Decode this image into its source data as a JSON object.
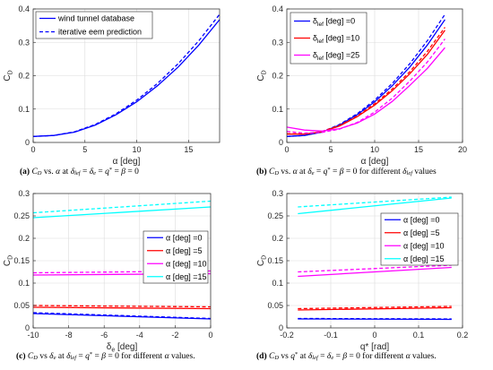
{
  "chart_data": [
    {
      "id": "a",
      "type": "line",
      "title": "",
      "xlabel": "α [deg]",
      "ylabel": "C_D",
      "xlim": [
        0,
        18
      ],
      "ylim": [
        0,
        0.4
      ],
      "xticks": [
        0,
        5,
        10,
        15
      ],
      "yticks": [
        0,
        0.1,
        0.2,
        0.3,
        0.4
      ],
      "grid": true,
      "legend": "top-left",
      "series": [
        {
          "name": "wind tunnel database",
          "style": "solid",
          "color": "#0000ff",
          "x": [
            0,
            2,
            4,
            6,
            8,
            10,
            12,
            14,
            16,
            18
          ],
          "y": [
            0.018,
            0.021,
            0.031,
            0.052,
            0.083,
            0.122,
            0.17,
            0.226,
            0.292,
            0.368
          ]
        },
        {
          "name": "iterative eem prediction",
          "style": "dashed",
          "color": "#0000ff",
          "x": [
            0,
            2,
            4,
            6,
            8,
            10,
            12,
            14,
            16,
            18
          ],
          "y": [
            0.018,
            0.021,
            0.032,
            0.054,
            0.086,
            0.127,
            0.177,
            0.236,
            0.305,
            0.384
          ]
        }
      ],
      "caption": {
        "label": "(a)",
        "text": "C_D vs. α at δ_lef = δ_e = q* = β = 0"
      }
    },
    {
      "id": "b",
      "type": "line",
      "title": "",
      "xlabel": "α [deg]",
      "ylabel": "C_D",
      "xlim": [
        0,
        20
      ],
      "ylim": [
        0,
        0.4
      ],
      "xticks": [
        0,
        5,
        10,
        15,
        20
      ],
      "yticks": [
        0,
        0.1,
        0.2,
        0.3,
        0.4
      ],
      "grid": true,
      "legend": "top-left",
      "series": [
        {
          "name": "δ_lef [deg] =0",
          "style": "solid",
          "color": "#0000ff",
          "x": [
            0,
            2,
            4,
            6,
            8,
            10,
            12,
            14,
            16,
            18
          ],
          "y": [
            0.018,
            0.021,
            0.031,
            0.052,
            0.083,
            0.122,
            0.17,
            0.226,
            0.292,
            0.368
          ]
        },
        {
          "name": "",
          "style": "dashed",
          "color": "#0000ff",
          "x": [
            0,
            2,
            4,
            6,
            8,
            10,
            12,
            14,
            16,
            18
          ],
          "y": [
            0.018,
            0.021,
            0.032,
            0.054,
            0.086,
            0.127,
            0.177,
            0.236,
            0.305,
            0.384
          ]
        },
        {
          "name": "δ_lef [deg] =10",
          "style": "solid",
          "color": "#ff0000",
          "x": [
            0,
            2,
            4,
            6,
            8,
            10,
            12,
            14,
            16,
            18
          ],
          "y": [
            0.025,
            0.025,
            0.032,
            0.049,
            0.077,
            0.112,
            0.155,
            0.206,
            0.264,
            0.336
          ]
        },
        {
          "name": "",
          "style": "dashed",
          "color": "#ff0000",
          "x": [
            0,
            2,
            4,
            6,
            8,
            10,
            12,
            14,
            16,
            18
          ],
          "y": [
            0.026,
            0.026,
            0.033,
            0.051,
            0.079,
            0.116,
            0.16,
            0.212,
            0.273,
            0.345
          ]
        },
        {
          "name": "δ_lef [deg] =25",
          "style": "solid",
          "color": "#ff00ff",
          "x": [
            0,
            2,
            4,
            6,
            8,
            10,
            12,
            14,
            16,
            18
          ],
          "y": [
            0.046,
            0.037,
            0.034,
            0.041,
            0.058,
            0.085,
            0.123,
            0.171,
            0.222,
            0.284
          ]
        },
        {
          "name": "",
          "style": "dashed",
          "color": "#ff00ff",
          "x": [
            0,
            2,
            4,
            6,
            8,
            10,
            12,
            14,
            16,
            18
          ],
          "y": [
            0.033,
            0.028,
            0.03,
            0.04,
            0.06,
            0.091,
            0.133,
            0.184,
            0.241,
            0.31
          ]
        }
      ],
      "caption": {
        "label": "(b)",
        "text": "C_D vs. α at δ_e = q* = β = 0 for different δ_lef values"
      }
    },
    {
      "id": "c",
      "type": "line",
      "title": "",
      "xlabel": "δ_e [deg]",
      "ylabel": "C_D",
      "xlim": [
        -10,
        0
      ],
      "ylim": [
        0,
        0.3
      ],
      "xticks": [
        -10,
        -8,
        -6,
        -4,
        -2,
        0
      ],
      "yticks": [
        0,
        0.05,
        0.1,
        0.15,
        0.2,
        0.25,
        0.3
      ],
      "grid": true,
      "legend": "center-right",
      "series": [
        {
          "name": "α [deg] =0",
          "style": "solid",
          "color": "#0000ff",
          "x": [
            -10,
            0
          ],
          "y": [
            0.032,
            0.02
          ]
        },
        {
          "name": "",
          "style": "dashed",
          "color": "#0000ff",
          "x": [
            -10,
            0
          ],
          "y": [
            0.034,
            0.021
          ]
        },
        {
          "name": "α [deg] =5",
          "style": "solid",
          "color": "#ff0000",
          "x": [
            -10,
            0
          ],
          "y": [
            0.046,
            0.043
          ]
        },
        {
          "name": "",
          "style": "dashed",
          "color": "#ff0000",
          "x": [
            -10,
            0
          ],
          "y": [
            0.05,
            0.047
          ]
        },
        {
          "name": "α [deg] =10",
          "style": "solid",
          "color": "#ff00ff",
          "x": [
            -10,
            0
          ],
          "y": [
            0.118,
            0.121
          ]
        },
        {
          "name": "",
          "style": "dashed",
          "color": "#ff00ff",
          "x": [
            -10,
            0
          ],
          "y": [
            0.123,
            0.127
          ]
        },
        {
          "name": "α [deg] =15",
          "style": "solid",
          "color": "#00ffff",
          "x": [
            -10,
            0
          ],
          "y": [
            0.246,
            0.27
          ]
        },
        {
          "name": "",
          "style": "dashed",
          "color": "#00ffff",
          "x": [
            -10,
            0
          ],
          "y": [
            0.257,
            0.283
          ]
        }
      ],
      "caption": {
        "label": "(c)",
        "text": "C_D vs δ_e at δ_lef = q* = β = 0 for different α values."
      }
    },
    {
      "id": "d",
      "type": "line",
      "title": "",
      "xlabel": "q* [rad]",
      "ylabel": "C_D",
      "xlim": [
        -0.2,
        0.2
      ],
      "ylim": [
        0,
        0.3
      ],
      "xticks": [
        -0.2,
        -0.1,
        0,
        0.1,
        0.2
      ],
      "yticks": [
        0,
        0.05,
        0.1,
        0.15,
        0.2,
        0.25,
        0.3
      ],
      "grid": true,
      "legend": "top-right",
      "series": [
        {
          "name": "α [deg] =0",
          "style": "solid",
          "color": "#0000ff",
          "x": [
            -0.175,
            0.175
          ],
          "y": [
            0.02,
            0.019
          ]
        },
        {
          "name": "",
          "style": "dashed",
          "color": "#0000ff",
          "x": [
            -0.175,
            0.175
          ],
          "y": [
            0.021,
            0.02
          ]
        },
        {
          "name": "α [deg] =5",
          "style": "solid",
          "color": "#ff0000",
          "x": [
            -0.175,
            0.175
          ],
          "y": [
            0.04,
            0.045
          ]
        },
        {
          "name": "",
          "style": "dashed",
          "color": "#ff0000",
          "x": [
            -0.175,
            0.175
          ],
          "y": [
            0.043,
            0.048
          ]
        },
        {
          "name": "α [deg] =10",
          "style": "solid",
          "color": "#ff00ff",
          "x": [
            -0.175,
            0.175
          ],
          "y": [
            0.115,
            0.135
          ]
        },
        {
          "name": "",
          "style": "dashed",
          "color": "#ff00ff",
          "x": [
            -0.175,
            0.175
          ],
          "y": [
            0.125,
            0.14
          ]
        },
        {
          "name": "α [deg] =15",
          "style": "solid",
          "color": "#00ffff",
          "x": [
            -0.175,
            0.175
          ],
          "y": [
            0.255,
            0.29
          ]
        },
        {
          "name": "",
          "style": "dashed",
          "color": "#00ffff",
          "x": [
            -0.175,
            0.175
          ],
          "y": [
            0.27,
            0.292
          ]
        }
      ],
      "caption": {
        "label": "(d)",
        "text": "C_D vs q* at δ_lef = δ_e = β = 0 for different α values."
      }
    }
  ]
}
